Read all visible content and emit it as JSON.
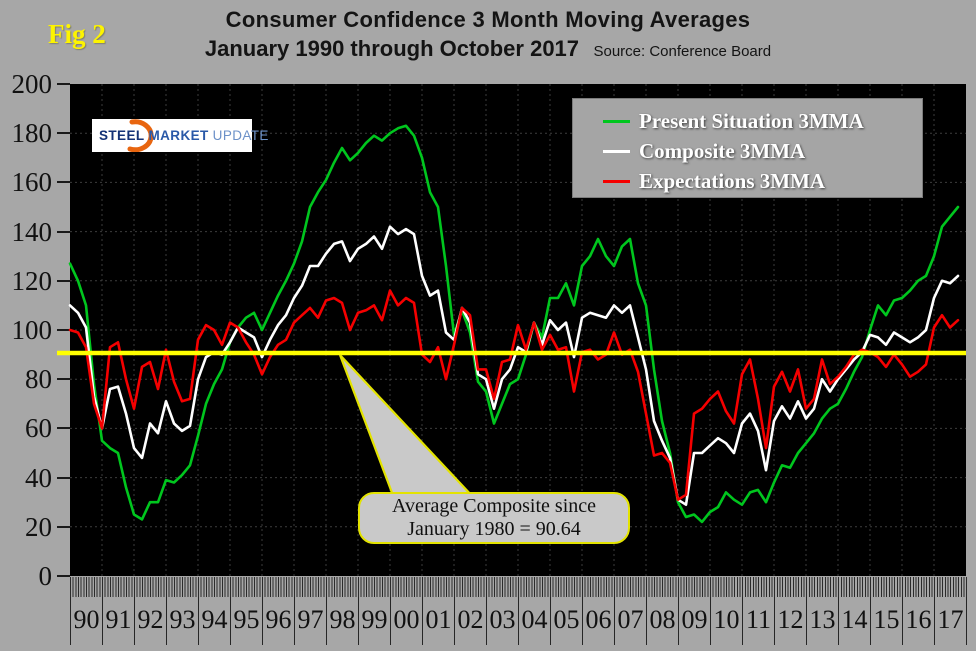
{
  "header": {
    "fig_label": "Fig 2",
    "title_line1": "Consumer Confidence 3 Month Moving Averages",
    "title_line2": "January 1990 through October 2017",
    "source": "Source: Conference Board"
  },
  "logo": {
    "word1": "STEEL",
    "word2": "MARKET",
    "word3": "UPDATE"
  },
  "legend": {
    "items": [
      {
        "label": "Present Situation 3MMA",
        "color": "#00c61e"
      },
      {
        "label": "Composite 3MMA",
        "color": "#ffffff"
      },
      {
        "label": "Expectations 3MMA",
        "color": "#f50000"
      }
    ]
  },
  "annotation": {
    "line1": "Average Composite since",
    "line2": "January 1980 = 90.64"
  },
  "chart_data": {
    "type": "line",
    "title": "Consumer Confidence 3 Month Moving Averages",
    "subtitle": "January 1990 through October 2017",
    "source": "Conference Board",
    "ylim": [
      0,
      200
    ],
    "y_ticks": [
      200,
      180,
      160,
      140,
      120,
      100,
      80,
      60,
      40,
      20,
      0
    ],
    "x_tick_labels": [
      "90",
      "91",
      "92",
      "93",
      "94",
      "95",
      "96",
      "97",
      "98",
      "99",
      "00",
      "01",
      "02",
      "03",
      "04",
      "05",
      "06",
      "07",
      "08",
      "09",
      "10",
      "11",
      "12",
      "13",
      "14",
      "15",
      "16",
      "17"
    ],
    "grid": true,
    "background": "#000000",
    "legend_position": "top-right",
    "average_line": {
      "label": "Average Composite since January 1980",
      "value": 90.64,
      "color": "#ffff00"
    },
    "x": [
      1990,
      1990.25,
      1990.5,
      1990.75,
      1991,
      1991.25,
      1991.5,
      1991.75,
      1992,
      1992.25,
      1992.5,
      1992.75,
      1993,
      1993.25,
      1993.5,
      1993.75,
      1994,
      1994.25,
      1994.5,
      1994.75,
      1995,
      1995.25,
      1995.5,
      1995.75,
      1996,
      1996.25,
      1996.5,
      1996.75,
      1997,
      1997.25,
      1997.5,
      1997.75,
      1998,
      1998.25,
      1998.5,
      1998.75,
      1999,
      1999.25,
      1999.5,
      1999.75,
      2000,
      2000.25,
      2000.5,
      2000.75,
      2001,
      2001.25,
      2001.5,
      2001.75,
      2002,
      2002.25,
      2002.5,
      2002.75,
      2003,
      2003.25,
      2003.5,
      2003.75,
      2004,
      2004.25,
      2004.5,
      2004.75,
      2005,
      2005.25,
      2005.5,
      2005.75,
      2006,
      2006.25,
      2006.5,
      2006.75,
      2007,
      2007.25,
      2007.5,
      2007.75,
      2008,
      2008.25,
      2008.5,
      2008.75,
      2009,
      2009.25,
      2009.5,
      2009.75,
      2010,
      2010.25,
      2010.5,
      2010.75,
      2011,
      2011.25,
      2011.5,
      2011.75,
      2012,
      2012.25,
      2012.5,
      2012.75,
      2013,
      2013.25,
      2013.5,
      2013.75,
      2014,
      2014.25,
      2014.5,
      2014.75,
      2015,
      2015.25,
      2015.5,
      2015.75,
      2016,
      2016.25,
      2016.5,
      2016.75,
      2017,
      2017.25,
      2017.5,
      2017.75
    ],
    "series": [
      {
        "name": "Present Situation 3MMA",
        "color": "#00c61e",
        "values": [
          127,
          120,
          110,
          78,
          55,
          52,
          50,
          36,
          25,
          23,
          30,
          30,
          39,
          38,
          41,
          45,
          57,
          70,
          78,
          84,
          95,
          101,
          105,
          107,
          100,
          107,
          114,
          120,
          127,
          136,
          150,
          156,
          161,
          168,
          174,
          169,
          172,
          176,
          179,
          177,
          180,
          182,
          183,
          179,
          170,
          156,
          150,
          126,
          98,
          108,
          99,
          79,
          75,
          62,
          70,
          78,
          80,
          90,
          103,
          97,
          113,
          113,
          119,
          110,
          126,
          130,
          137,
          130,
          126,
          134,
          137,
          119,
          110,
          84,
          63,
          50,
          30,
          24,
          25,
          22,
          26,
          28,
          34,
          31,
          29,
          34,
          35,
          30,
          38,
          45,
          44,
          50,
          54,
          58,
          64,
          68,
          70,
          76,
          83,
          89,
          100,
          110,
          106,
          112,
          113,
          116,
          120,
          122,
          130,
          142,
          146,
          150
        ]
      },
      {
        "name": "Composite 3MMA",
        "color": "#ffffff",
        "values": [
          110,
          107,
          101,
          73,
          60,
          76,
          77,
          66,
          52,
          48,
          62,
          58,
          71,
          62,
          59,
          61,
          80,
          89,
          91,
          90,
          95,
          101,
          99,
          97,
          89,
          96,
          102,
          106,
          113,
          118,
          126,
          126,
          131,
          135,
          136,
          128,
          133,
          135,
          138,
          133,
          142,
          139,
          141,
          139,
          122,
          114,
          116,
          99,
          96,
          109,
          103,
          82,
          80,
          68,
          80,
          84,
          93,
          91,
          103,
          94,
          104,
          100,
          103,
          89,
          105,
          107,
          106,
          105,
          110,
          107,
          110,
          97,
          84,
          63,
          55,
          48,
          31,
          29,
          50,
          50,
          53,
          56,
          54,
          50,
          62,
          66,
          59,
          43,
          63,
          69,
          64,
          71,
          64,
          68,
          80,
          75,
          80,
          84,
          88,
          91,
          98,
          97,
          94,
          99,
          97,
          95,
          97,
          100,
          113,
          120,
          119,
          122
        ]
      },
      {
        "name": "Expectations 3MMA",
        "color": "#f50000",
        "values": [
          100,
          99,
          93,
          70,
          60,
          93,
          95,
          80,
          68,
          85,
          87,
          76,
          92,
          79,
          71,
          72,
          96,
          102,
          100,
          94,
          103,
          101,
          95,
          90,
          82,
          89,
          94,
          96,
          103,
          106,
          109,
          105,
          112,
          113,
          111,
          100,
          107,
          108,
          110,
          104,
          116,
          110,
          113,
          111,
          90,
          87,
          93,
          80,
          94,
          109,
          106,
          84,
          84,
          72,
          87,
          88,
          102,
          92,
          103,
          92,
          98,
          92,
          93,
          75,
          91,
          92,
          88,
          90,
          99,
          90,
          92,
          83,
          66,
          49,
          50,
          46,
          31,
          33,
          66,
          68,
          72,
          75,
          67,
          62,
          82,
          88,
          72,
          52,
          77,
          83,
          75,
          84,
          68,
          72,
          88,
          78,
          81,
          85,
          90,
          92,
          91,
          89,
          85,
          90,
          86,
          81,
          83,
          86,
          101,
          106,
          101,
          104
        ]
      }
    ]
  }
}
